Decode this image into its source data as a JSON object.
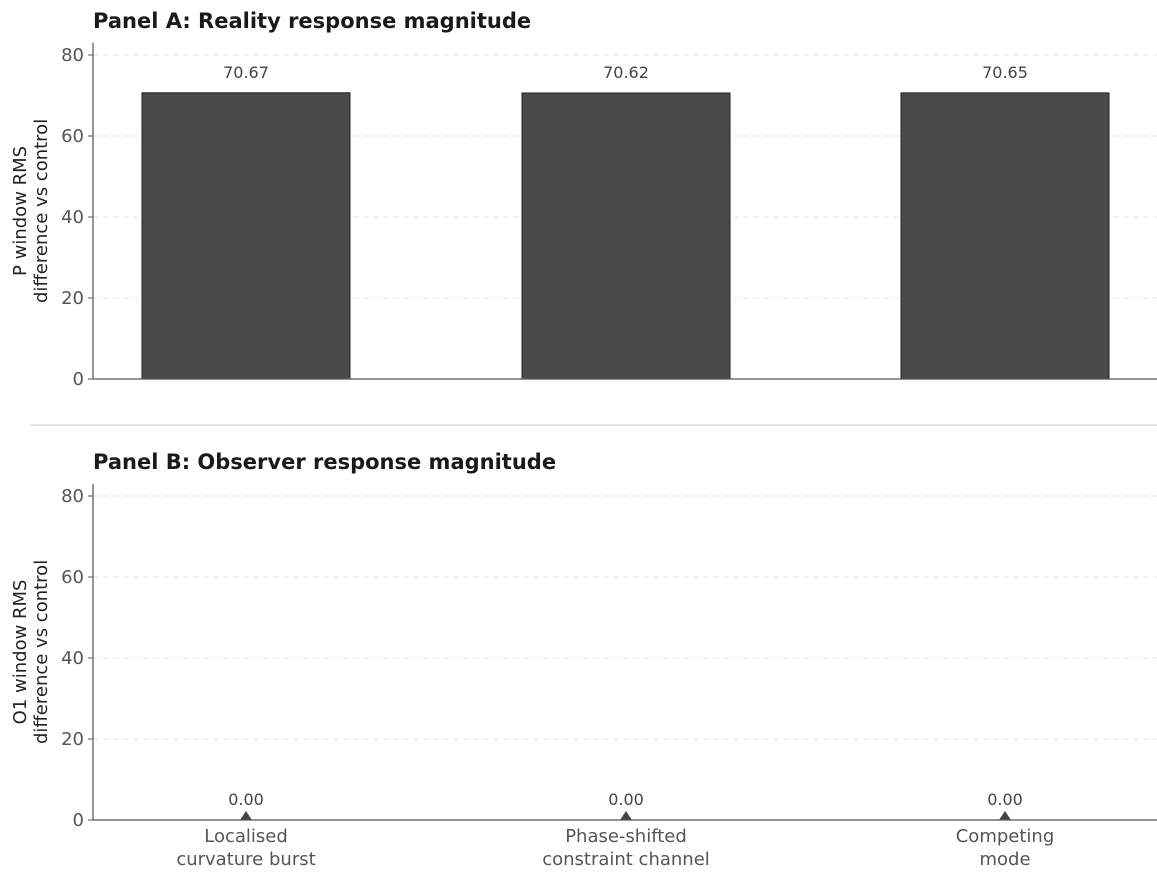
{
  "chart_data": [
    {
      "type": "bar",
      "title": "Panel A:  Reality response magnitude",
      "ylabel_lines": [
        "P window RMS",
        "difference vs control"
      ],
      "categories": [
        [
          "Localised",
          "curvature burst"
        ],
        [
          "Phase-shifted",
          "constraint channel"
        ],
        [
          "Competing",
          "mode"
        ]
      ],
      "values": [
        70.67,
        70.62,
        70.65
      ],
      "value_labels": [
        "70.67",
        "70.62",
        "70.65"
      ],
      "ylim": [
        0,
        83
      ],
      "yticks": [
        0,
        20,
        40,
        60,
        80
      ],
      "grid": true,
      "bar_color": "#4a4a4a",
      "show_x_labels": false
    },
    {
      "type": "bar",
      "title": "Panel B:  Observer response magnitude",
      "ylabel_lines": [
        "O1 window RMS",
        "difference vs control"
      ],
      "categories": [
        [
          "Localised",
          "curvature burst"
        ],
        [
          "Phase-shifted",
          "constraint channel"
        ],
        [
          "Competing",
          "mode"
        ]
      ],
      "values": [
        0.0,
        0.0,
        0.0
      ],
      "value_labels": [
        "0.00",
        "0.00",
        "0.00"
      ],
      "ylim": [
        0,
        83
      ],
      "yticks": [
        0,
        20,
        40,
        60,
        80
      ],
      "grid": true,
      "bar_color": "#4a4a4a",
      "marker": "triangle",
      "show_x_labels": true
    }
  ]
}
